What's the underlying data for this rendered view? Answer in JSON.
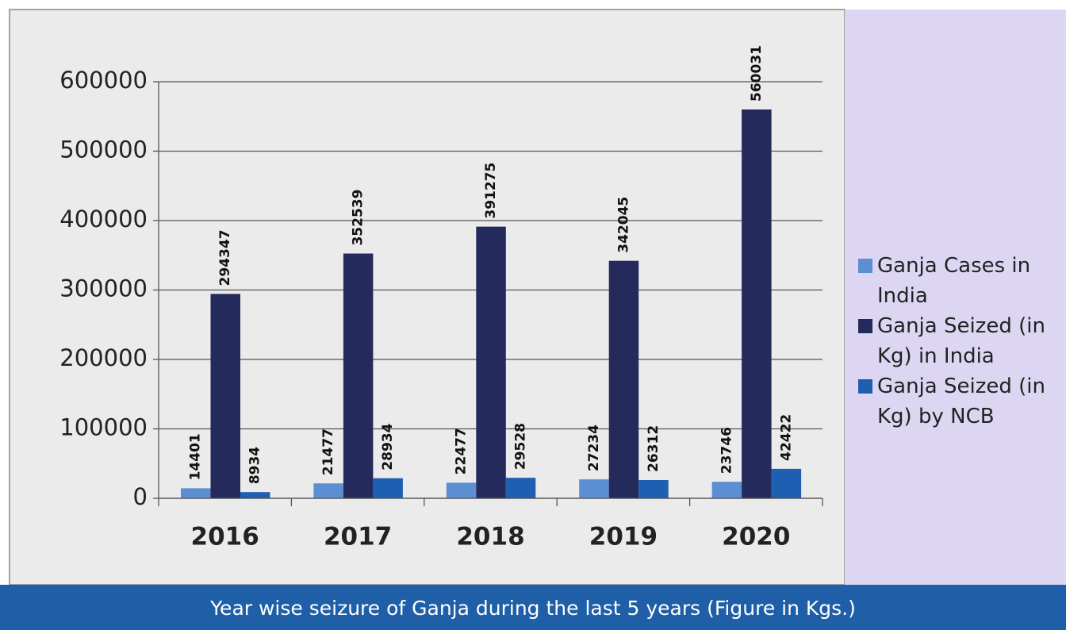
{
  "chart_data": {
    "type": "bar",
    "title": "Year wise seizure of Ganja during the last 5 years (Figure in Kgs.)",
    "categories": [
      "2016",
      "2017",
      "2018",
      "2019",
      "2020"
    ],
    "series": [
      {
        "name": "Ganja Cases in India",
        "color": "#5b8ed2",
        "values": [
          14401,
          21477,
          22477,
          27234,
          23746
        ]
      },
      {
        "name": "Ganja Seized (in Kg) in India",
        "color": "#252a5c",
        "values": [
          294347,
          352539,
          391275,
          342045,
          560031
        ]
      },
      {
        "name": "Ganja Seized (in Kg) by NCB",
        "color": "#1f5fb2",
        "values": [
          8934,
          28934,
          29528,
          26312,
          42422
        ]
      }
    ],
    "ylim": [
      0,
      600000
    ],
    "yticks": [
      0,
      100000,
      200000,
      300000,
      400000,
      500000,
      600000
    ],
    "grid": true,
    "legend": "right"
  }
}
